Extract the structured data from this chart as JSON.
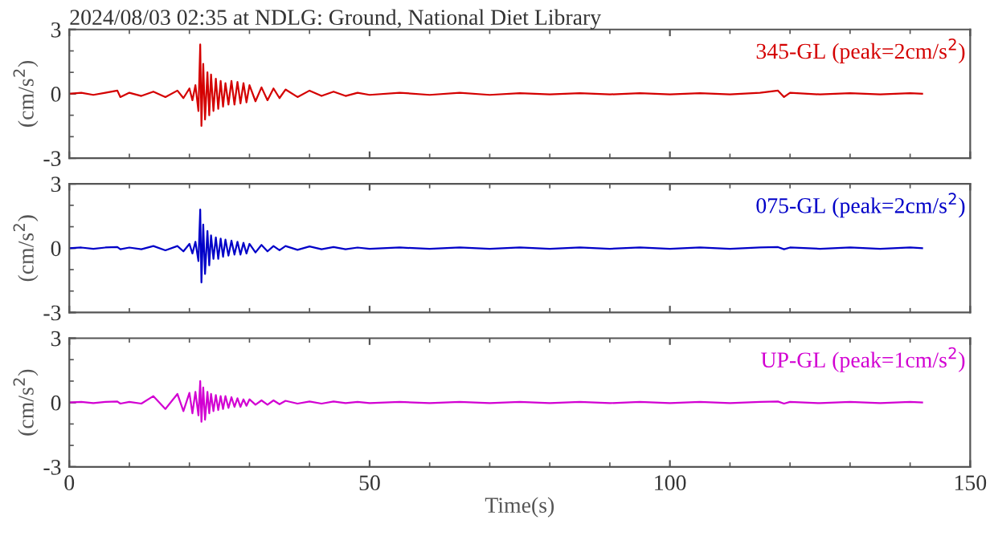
{
  "chart_data": [
    {
      "type": "line",
      "title": "2024/08/03 02:35 at NDLG: Ground, National Diet Library",
      "ylabel": "(cm/s$^{2}$)",
      "annotations": [
        "345-GL (peak=2cm/s$^{2}$)"
      ],
      "xlim": [
        0,
        150
      ],
      "xticks": [
        0,
        50,
        100,
        150
      ],
      "ylim": [
        -3,
        3
      ],
      "yticks": [
        -3,
        0,
        3
      ],
      "tick_labels": "y",
      "x": [
        0,
        2,
        4,
        6,
        8,
        8.5,
        10,
        12,
        14,
        16,
        18,
        19,
        20,
        20.5,
        21,
        21.5,
        21.8,
        22,
        22.3,
        22.6,
        23,
        23.3,
        23.6,
        24,
        24.4,
        24.8,
        25.2,
        25.6,
        26,
        26.5,
        27,
        27.5,
        28,
        28.5,
        29,
        29.5,
        30,
        31,
        32,
        33,
        34,
        35,
        36,
        38,
        40,
        42,
        44,
        46,
        48,
        50,
        55,
        60,
        65,
        70,
        75,
        80,
        85,
        90,
        95,
        100,
        105,
        110,
        115,
        118,
        119,
        120,
        125,
        130,
        135,
        140,
        142
      ],
      "series": [
        {
          "color": "#d40000",
          "values": [
            0,
            0.05,
            -0.05,
            0.05,
            0.15,
            -0.15,
            0.05,
            -0.1,
            0.1,
            -0.15,
            0.15,
            -0.2,
            0.25,
            -0.3,
            0.4,
            -0.8,
            2.3,
            -1.5,
            1.4,
            -1.2,
            1.0,
            -1.0,
            0.9,
            -0.8,
            0.7,
            -0.7,
            0.6,
            -0.6,
            0.5,
            -0.5,
            0.6,
            -0.5,
            0.55,
            -0.45,
            0.5,
            -0.4,
            0.4,
            -0.35,
            0.3,
            -0.3,
            0.25,
            -0.2,
            0.2,
            -0.15,
            0.15,
            -0.1,
            0.1,
            -0.1,
            0.05,
            -0.05,
            0.05,
            -0.05,
            0.05,
            -0.05,
            0.03,
            -0.03,
            0.03,
            -0.03,
            0.03,
            -0.03,
            0.03,
            -0.03,
            0.05,
            0.15,
            -0.15,
            0.05,
            -0.03,
            0.03,
            -0.03,
            0.03,
            0
          ]
        }
      ]
    },
    {
      "type": "line",
      "ylabel": "(cm/s$^{2}$)",
      "annotations": [
        "075-GL (peak=2cm/s$^{2}$)"
      ],
      "xlim": [
        0,
        150
      ],
      "xticks": [
        0,
        50,
        100,
        150
      ],
      "ylim": [
        -3,
        3
      ],
      "yticks": [
        -3,
        0,
        3
      ],
      "tick_labels": "y",
      "x": [
        0,
        2,
        4,
        6,
        8,
        8.5,
        10,
        12,
        14,
        16,
        18,
        19,
        20,
        20.5,
        21,
        21.5,
        21.8,
        22,
        22.3,
        22.6,
        23,
        23.3,
        23.6,
        24,
        24.4,
        24.8,
        25.2,
        25.6,
        26,
        26.5,
        27,
        27.5,
        28,
        28.5,
        29,
        29.5,
        30,
        31,
        32,
        33,
        34,
        35,
        36,
        38,
        40,
        42,
        44,
        46,
        48,
        50,
        55,
        60,
        65,
        70,
        75,
        80,
        85,
        90,
        95,
        100,
        105,
        110,
        115,
        118,
        119,
        120,
        125,
        130,
        135,
        140,
        142
      ],
      "series": [
        {
          "color": "#0000c8",
          "values": [
            0,
            0.03,
            -0.03,
            0.03,
            0.05,
            -0.05,
            0.03,
            -0.05,
            0.1,
            -0.1,
            0.1,
            -0.15,
            0.2,
            -0.25,
            0.3,
            -0.6,
            1.8,
            -1.6,
            1.1,
            -1.2,
            0.8,
            -0.8,
            0.6,
            -0.5,
            0.5,
            -0.5,
            0.45,
            -0.4,
            0.4,
            -0.35,
            0.35,
            -0.3,
            0.3,
            -0.3,
            0.25,
            -0.25,
            0.2,
            -0.2,
            0.15,
            -0.15,
            0.1,
            -0.1,
            0.1,
            -0.08,
            0.08,
            -0.05,
            0.05,
            -0.05,
            0.03,
            -0.03,
            0.03,
            -0.03,
            0.03,
            -0.03,
            0.03,
            -0.03,
            0.03,
            -0.03,
            0.03,
            -0.03,
            0.03,
            -0.03,
            0.03,
            0.05,
            -0.05,
            0.03,
            -0.03,
            0.03,
            -0.03,
            0.03,
            0
          ]
        }
      ]
    },
    {
      "type": "line",
      "xlabel": "Time(s)",
      "ylabel": "(cm/s$^{2}$)",
      "annotations": [
        "UP-GL (peak=1cm/s$^{2}$)"
      ],
      "xlim": [
        0,
        150
      ],
      "xticks": [
        0,
        50,
        100,
        150
      ],
      "ylim": [
        -3,
        3
      ],
      "yticks": [
        -3,
        0,
        3
      ],
      "x": [
        0,
        2,
        4,
        6,
        8,
        8.5,
        10,
        12,
        14,
        16,
        18,
        19,
        20,
        20.5,
        21,
        21.5,
        21.8,
        22,
        22.3,
        22.6,
        23,
        23.3,
        23.6,
        24,
        24.4,
        24.8,
        25.2,
        25.6,
        26,
        26.5,
        27,
        27.5,
        28,
        28.5,
        29,
        29.5,
        30,
        31,
        32,
        33,
        34,
        35,
        36,
        38,
        40,
        42,
        44,
        46,
        48,
        50,
        55,
        60,
        65,
        70,
        75,
        80,
        85,
        90,
        95,
        100,
        105,
        110,
        115,
        118,
        119,
        120,
        125,
        130,
        135,
        140,
        142
      ],
      "series": [
        {
          "color": "#d200d2",
          "values": [
            0,
            0.03,
            -0.03,
            0.03,
            0.05,
            -0.05,
            0.03,
            -0.05,
            0.3,
            -0.3,
            0.4,
            -0.4,
            0.45,
            -0.5,
            0.5,
            -0.6,
            1.0,
            -0.9,
            0.7,
            -0.8,
            0.5,
            -0.5,
            0.4,
            -0.4,
            0.35,
            -0.35,
            0.3,
            -0.3,
            0.3,
            -0.25,
            0.25,
            -0.2,
            0.2,
            -0.2,
            0.15,
            -0.15,
            0.15,
            -0.1,
            0.1,
            -0.1,
            0.1,
            -0.08,
            0.08,
            -0.05,
            0.05,
            -0.05,
            0.05,
            -0.03,
            0.03,
            -0.03,
            0.03,
            -0.03,
            0.03,
            -0.03,
            0.03,
            -0.03,
            0.03,
            -0.03,
            0.03,
            -0.03,
            0.03,
            -0.03,
            0.03,
            0.05,
            -0.05,
            0.03,
            -0.03,
            0.03,
            -0.03,
            0.03,
            0
          ]
        }
      ]
    }
  ]
}
